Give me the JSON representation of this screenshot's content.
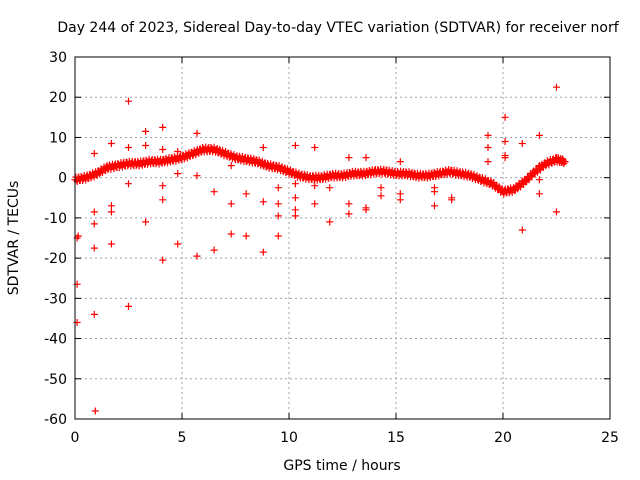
{
  "chart_data": {
    "type": "scatter",
    "title": "Day 244 of 2023, Sidereal Day-to-day VTEC variation (SDTVAR) for receiver norf",
    "xlabel": "GPS time / hours",
    "ylabel": "SDTVAR / TECUs",
    "xlim": [
      0,
      25
    ],
    "ylim": [
      -60,
      30
    ],
    "xticks": [
      0,
      5,
      10,
      15,
      20,
      25
    ],
    "yticks": [
      -60,
      -50,
      -40,
      -30,
      -20,
      -10,
      0,
      10,
      20,
      30
    ],
    "xtick_labels": [
      "0",
      "5",
      "10",
      "15",
      "20",
      "25"
    ],
    "ytick_labels": [
      "-60",
      "-50",
      "-40",
      "-30",
      "-20",
      "-10",
      "0",
      "10",
      "20",
      "30"
    ],
    "grid": true,
    "marker": "+",
    "color": "#ff0000",
    "series": [
      {
        "name": "SDTVAR",
        "main_curve": [
          [
            0.0,
            -0.5
          ],
          [
            0.5,
            0.0
          ],
          [
            1.0,
            1.0
          ],
          [
            1.5,
            2.5
          ],
          [
            2.0,
            3.0
          ],
          [
            2.5,
            3.5
          ],
          [
            3.0,
            3.5
          ],
          [
            3.5,
            4.0
          ],
          [
            4.0,
            4.0
          ],
          [
            4.5,
            4.5
          ],
          [
            5.0,
            5.0
          ],
          [
            5.5,
            6.0
          ],
          [
            6.0,
            7.0
          ],
          [
            6.5,
            7.0
          ],
          [
            7.0,
            6.0
          ],
          [
            7.5,
            5.0
          ],
          [
            8.0,
            4.5
          ],
          [
            8.5,
            4.0
          ],
          [
            9.0,
            3.0
          ],
          [
            9.5,
            2.5
          ],
          [
            10.0,
            1.5
          ],
          [
            10.5,
            0.5
          ],
          [
            11.0,
            0.0
          ],
          [
            11.5,
            0.0
          ],
          [
            12.0,
            0.5
          ],
          [
            12.5,
            0.5
          ],
          [
            13.0,
            1.0
          ],
          [
            13.5,
            1.0
          ],
          [
            14.0,
            1.5
          ],
          [
            14.5,
            1.5
          ],
          [
            15.0,
            1.0
          ],
          [
            15.5,
            1.0
          ],
          [
            16.0,
            0.5
          ],
          [
            16.5,
            0.5
          ],
          [
            17.0,
            1.0
          ],
          [
            17.5,
            1.5
          ],
          [
            18.0,
            1.0
          ],
          [
            18.5,
            0.5
          ],
          [
            19.0,
            -0.5
          ],
          [
            19.5,
            -1.5
          ],
          [
            20.0,
            -3.5
          ],
          [
            20.5,
            -3.0
          ],
          [
            21.0,
            -1.0
          ],
          [
            21.5,
            1.5
          ],
          [
            22.0,
            3.5
          ],
          [
            22.5,
            4.5
          ],
          [
            22.9,
            4.0
          ]
        ],
        "outliers": [
          [
            0.1,
            -15.0
          ],
          [
            0.1,
            -26.5
          ],
          [
            0.1,
            -36.0
          ],
          [
            0.15,
            -14.5
          ],
          [
            0.9,
            6.0
          ],
          [
            0.9,
            -8.5
          ],
          [
            0.9,
            -11.5
          ],
          [
            0.9,
            -17.5
          ],
          [
            0.9,
            -34.0
          ],
          [
            0.95,
            -58.0
          ],
          [
            1.7,
            8.5
          ],
          [
            1.7,
            -7.0
          ],
          [
            1.7,
            -8.5
          ],
          [
            1.7,
            -16.5
          ],
          [
            2.5,
            19.0
          ],
          [
            2.5,
            7.5
          ],
          [
            2.5,
            -1.5
          ],
          [
            2.5,
            -32.0
          ],
          [
            3.3,
            11.5
          ],
          [
            3.3,
            8.0
          ],
          [
            3.3,
            -11.0
          ],
          [
            4.1,
            12.5
          ],
          [
            4.1,
            7.0
          ],
          [
            4.1,
            -2.0
          ],
          [
            4.1,
            -5.5
          ],
          [
            4.1,
            -20.5
          ],
          [
            4.8,
            6.5
          ],
          [
            4.8,
            1.0
          ],
          [
            4.8,
            -16.5
          ],
          [
            5.7,
            11.0
          ],
          [
            5.7,
            0.5
          ],
          [
            5.7,
            -19.5
          ],
          [
            6.5,
            -3.5
          ],
          [
            6.5,
            -18.0
          ],
          [
            7.3,
            3.0
          ],
          [
            7.3,
            -6.5
          ],
          [
            7.3,
            -14.0
          ],
          [
            8.0,
            -4.0
          ],
          [
            8.0,
            -14.5
          ],
          [
            8.8,
            7.5
          ],
          [
            8.8,
            -6.0
          ],
          [
            8.8,
            -18.5
          ],
          [
            9.5,
            -2.5
          ],
          [
            9.5,
            -6.5
          ],
          [
            9.5,
            -9.5
          ],
          [
            9.5,
            -14.5
          ],
          [
            10.3,
            8.0
          ],
          [
            10.3,
            -1.5
          ],
          [
            10.3,
            -8.0
          ],
          [
            10.3,
            -9.5
          ],
          [
            10.3,
            -5.0
          ],
          [
            11.2,
            7.5
          ],
          [
            11.2,
            -2.0
          ],
          [
            11.2,
            -6.5
          ],
          [
            11.9,
            -11.0
          ],
          [
            11.9,
            -2.5
          ],
          [
            12.8,
            5.0
          ],
          [
            12.8,
            -6.5
          ],
          [
            12.8,
            -9.0
          ],
          [
            13.6,
            5.0
          ],
          [
            13.6,
            -7.5
          ],
          [
            13.6,
            -8.0
          ],
          [
            14.3,
            -2.5
          ],
          [
            14.3,
            -4.5
          ],
          [
            15.2,
            4.0
          ],
          [
            15.2,
            -4.0
          ],
          [
            15.2,
            -5.5
          ],
          [
            16.8,
            -2.5
          ],
          [
            16.8,
            -3.5
          ],
          [
            16.8,
            -7.0
          ],
          [
            17.6,
            -5.0
          ],
          [
            17.6,
            -5.5
          ],
          [
            19.3,
            10.5
          ],
          [
            19.3,
            4.0
          ],
          [
            19.3,
            7.5
          ],
          [
            20.1,
            15.0
          ],
          [
            20.1,
            9.0
          ],
          [
            20.1,
            5.0
          ],
          [
            20.1,
            5.5
          ],
          [
            20.9,
            8.5
          ],
          [
            20.9,
            -13.0
          ],
          [
            21.7,
            10.5
          ],
          [
            21.7,
            -0.5
          ],
          [
            21.7,
            -4.0
          ],
          [
            21.7,
            3.0
          ],
          [
            22.5,
            22.5
          ],
          [
            22.5,
            5.0
          ],
          [
            22.5,
            -8.5
          ]
        ]
      }
    ]
  }
}
